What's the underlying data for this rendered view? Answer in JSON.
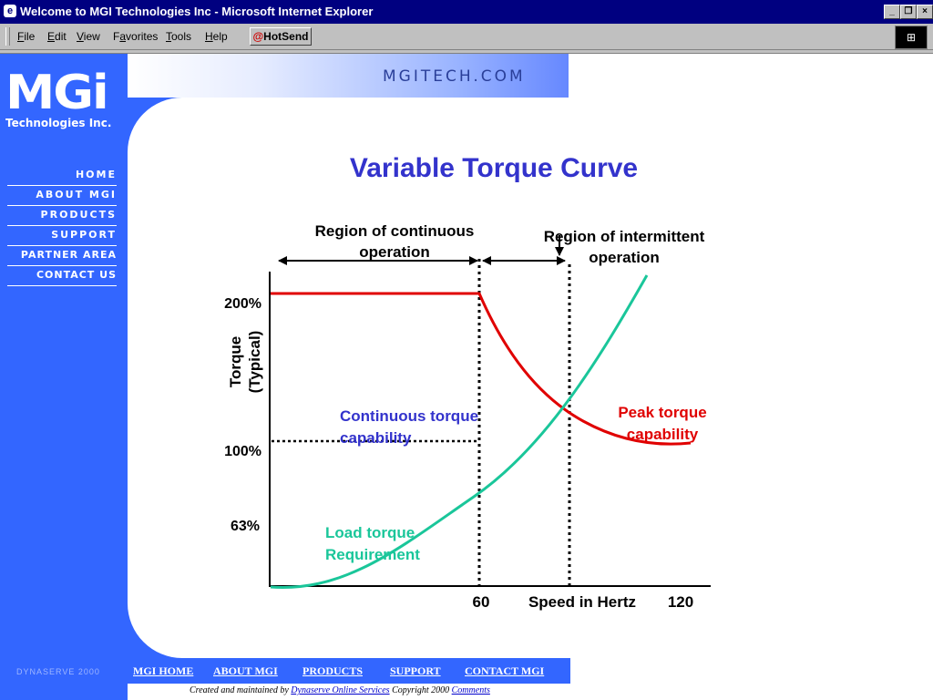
{
  "window": {
    "title": "Welcome to MGI Technologies Inc - Microsoft Internet Explorer",
    "minimize": "_",
    "restore": "❐",
    "close": "×"
  },
  "menu": {
    "items": [
      {
        "ul": "F",
        "rest": "ile"
      },
      {
        "ul": "E",
        "rest": "dit"
      },
      {
        "ul": "V",
        "rest": "iew"
      },
      {
        "pre": "F",
        "ul": "a",
        "rest": "vorites"
      },
      {
        "ul": "T",
        "rest": "ools"
      },
      {
        "ul": "H",
        "rest": "elp"
      }
    ],
    "hotsend": "HotSend"
  },
  "site": {
    "name": "MGITECH.COM",
    "logo": "MGi",
    "logo_sub": "Technologies Inc."
  },
  "nav": [
    "HOME",
    "ABOUT MGI",
    "PRODUCTS",
    "SUPPORT",
    "PARTNER AREA",
    "CONTACT US"
  ],
  "footer": {
    "brand": "DYNASERVE 2000",
    "links": [
      "MGI HOME",
      "ABOUT MGI",
      "PRODUCTS",
      "SUPPORT",
      "CONTACT MGI"
    ],
    "created": "Created and maintained by",
    "service": "Dynaserve Online Services",
    "copyright": "Copyright 2000",
    "comments": "Comments"
  },
  "chart_data": {
    "type": "line",
    "title": "Variable Torque Curve",
    "xlabel": "Speed in Hertz",
    "ylabel": "Torque (Typical)",
    "ylabel_line1": "Torque",
    "ylabel_line2": "(Typical)",
    "x_tick_labels": [
      "60",
      "120"
    ],
    "y_tick_labels": [
      "200%",
      "100%",
      "63%"
    ],
    "region_continuous": [
      "Region of continuous",
      "operation"
    ],
    "region_intermittent": [
      "Region of intermittent",
      "operation"
    ],
    "continuous_label": [
      "Continuous torque",
      "capability"
    ],
    "peak_label": [
      "Peak torque",
      "capability"
    ],
    "load_label": [
      "Load torque",
      "Requirement"
    ],
    "colors": {
      "peak": "#e00000",
      "load": "#1ac69a",
      "continuous": "#3333cc",
      "title": "#3333cc"
    }
  }
}
